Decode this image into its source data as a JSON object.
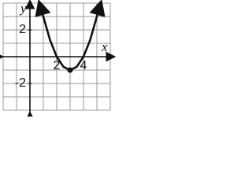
{
  "chart_data": {
    "type": "line",
    "x_label": "x",
    "y_label": "y",
    "x": [
      1,
      1.5,
      2,
      2.5,
      3,
      3.5,
      4,
      4.5,
      5
    ],
    "series": [
      {
        "color": "#111111",
        "values": [
          3,
          1.25,
          0,
          -0.75,
          -1,
          -0.75,
          0,
          1.25,
          3
        ]
      }
    ],
    "vertex": {
      "x": 3,
      "y": -1
    },
    "xlim": [
      -2,
      6
    ],
    "ylim": [
      -4,
      4
    ],
    "xticks": [
      2,
      4
    ],
    "yticks": [
      2,
      -2
    ],
    "grid": true
  }
}
